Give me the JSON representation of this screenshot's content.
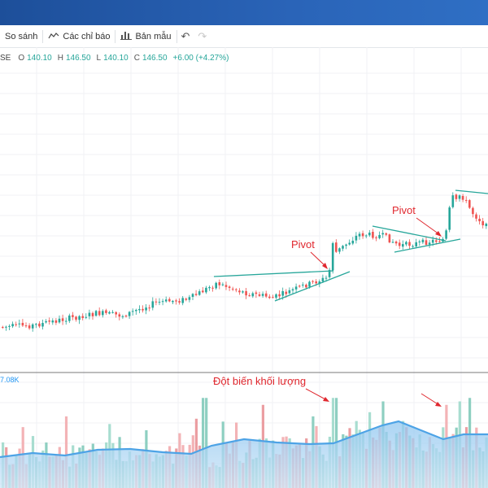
{
  "toolbar": {
    "compare_label": "So sánh",
    "indicators_label": "Các chỉ báo",
    "templates_label": "Bản mẫu",
    "icons": [
      "compare-icon",
      "indicators-icon",
      "templates-icon",
      "undo-icon",
      "redo-icon"
    ]
  },
  "legend": {
    "symbol_fragment": "SE",
    "open_key": "O",
    "open": "140.10",
    "high_key": "H",
    "high": "146.50",
    "low_key": "L",
    "low": "140.10",
    "close_key": "C",
    "close": "146.50",
    "change": "+6.00 (+4.27%)"
  },
  "volume_label": "7.08K",
  "annotations": {
    "pivot_1": "Pivot",
    "pivot_2": "Pivot",
    "volume_spike": "Đột biến khối lượng"
  },
  "colors": {
    "up": "#26a69a",
    "down": "#ef5350",
    "trendline": "#26a69a",
    "annotation": "#e0272e",
    "volume_ma": "#4da3e6",
    "header": "#1d4f9a"
  }
}
